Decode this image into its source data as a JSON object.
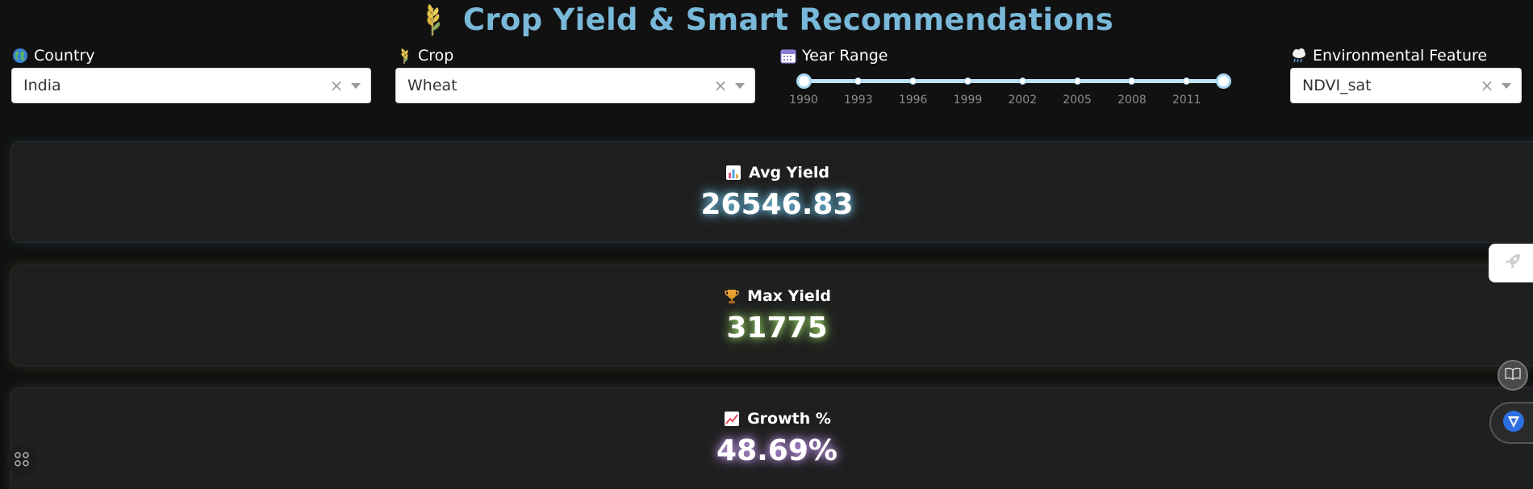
{
  "header": {
    "title": "Crop Yield & Smart Recommendations",
    "icon": "wheat-icon",
    "title_color": "#79b8d8"
  },
  "filters": {
    "country": {
      "label": "Country",
      "value": "India",
      "icon": "globe-icon"
    },
    "crop": {
      "label": "Crop",
      "value": "Wheat",
      "icon": "wheat-icon"
    },
    "year_range": {
      "label": "Year Range",
      "icon": "calendar-icon",
      "min": 1990,
      "max": 2013,
      "selected_start": 1990,
      "selected_end": 2013,
      "ticks": [
        "1990",
        "1993",
        "1996",
        "1999",
        "2002",
        "2005",
        "2008",
        "2011"
      ]
    },
    "environmental_feature": {
      "label": "Environmental Feature",
      "value": "NDVI_sat",
      "icon": "cloud-rain-icon"
    }
  },
  "kpis": [
    {
      "label": "Avg Yield",
      "value": "26546.83",
      "icon": "bar-chart-icon",
      "glow": "#6fc3e8"
    },
    {
      "label": "Max Yield",
      "value": "31775",
      "icon": "trophy-icon",
      "glow": "#9edd6a"
    },
    {
      "label": "Growth %",
      "value": "48.69%",
      "icon": "trending-up-icon",
      "glow": "#c79bf0"
    }
  ],
  "widgets": {
    "clear_symbol": "×"
  }
}
